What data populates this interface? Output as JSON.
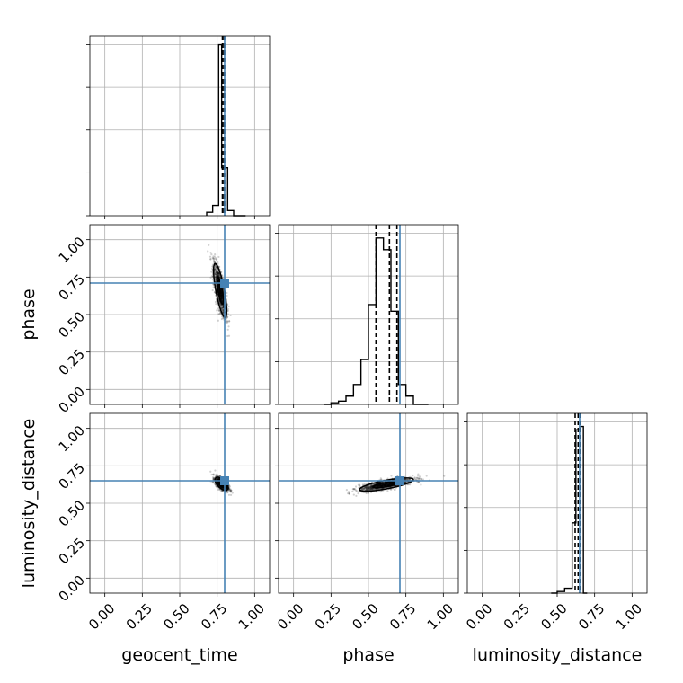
{
  "chart_data": {
    "type": "corner",
    "parameters": [
      "geocent_time",
      "phase",
      "luminosity_distance"
    ],
    "xlabels": [
      "geocent_time",
      "phase",
      "luminosity_distance"
    ],
    "ylabels": [
      "",
      "phase",
      "luminosity_distance"
    ],
    "range": [
      -0.1,
      1.1
    ],
    "ticks": [
      0.0,
      0.25,
      0.5,
      0.75,
      1.0
    ],
    "tick_labels": [
      "0.00",
      "0.25",
      "0.50",
      "0.75",
      "1.00"
    ],
    "truths": [
      0.8,
      0.71,
      0.65
    ],
    "truth_color": "#4682b4",
    "grid": true,
    "histograms": [
      {
        "parameter": "geocent_time",
        "bin_edges": [
          0.68,
          0.72,
          0.76,
          0.78,
          0.82,
          0.86,
          0.9,
          0.94
        ],
        "counts": [
          2,
          6,
          100,
          28,
          3,
          0,
          0
        ],
        "ymax": 105,
        "quantiles": [
          0.785,
          0.795,
          0.8
        ]
      },
      {
        "parameter": "phase",
        "bin_edges": [
          0.2,
          0.25,
          0.3,
          0.35,
          0.4,
          0.45,
          0.5,
          0.55,
          0.6,
          0.65,
          0.7,
          0.75,
          0.8,
          0.85,
          0.9
        ],
        "counts": [
          0,
          1,
          2,
          5,
          12,
          27,
          60,
          100,
          93,
          56,
          12,
          5,
          0,
          0
        ],
        "ymax": 108,
        "quantiles": [
          0.55,
          0.64,
          0.69
        ]
      },
      {
        "parameter": "luminosity_distance",
        "bin_edges": [
          0.46,
          0.5,
          0.55,
          0.6,
          0.625,
          0.65,
          0.675,
          0.7
        ],
        "counts": [
          0,
          1,
          3,
          43,
          100,
          102,
          0
        ],
        "ymax": 110,
        "quantiles": [
          0.62,
          0.64,
          0.655
        ]
      }
    ],
    "scatter_clouds": [
      {
        "row": 1,
        "col": 0,
        "cx": 0.77,
        "cy": 0.66,
        "sx": 0.022,
        "sy": 0.09,
        "rho": -0.75,
        "n": 1200
      },
      {
        "row": 2,
        "col": 0,
        "cx": 0.78,
        "cy": 0.63,
        "sx": 0.022,
        "sy": 0.022,
        "rho": -0.6,
        "n": 1000
      },
      {
        "row": 2,
        "col": 1,
        "cx": 0.62,
        "cy": 0.625,
        "sx": 0.09,
        "sy": 0.022,
        "rho": 0.75,
        "n": 1200
      }
    ]
  }
}
